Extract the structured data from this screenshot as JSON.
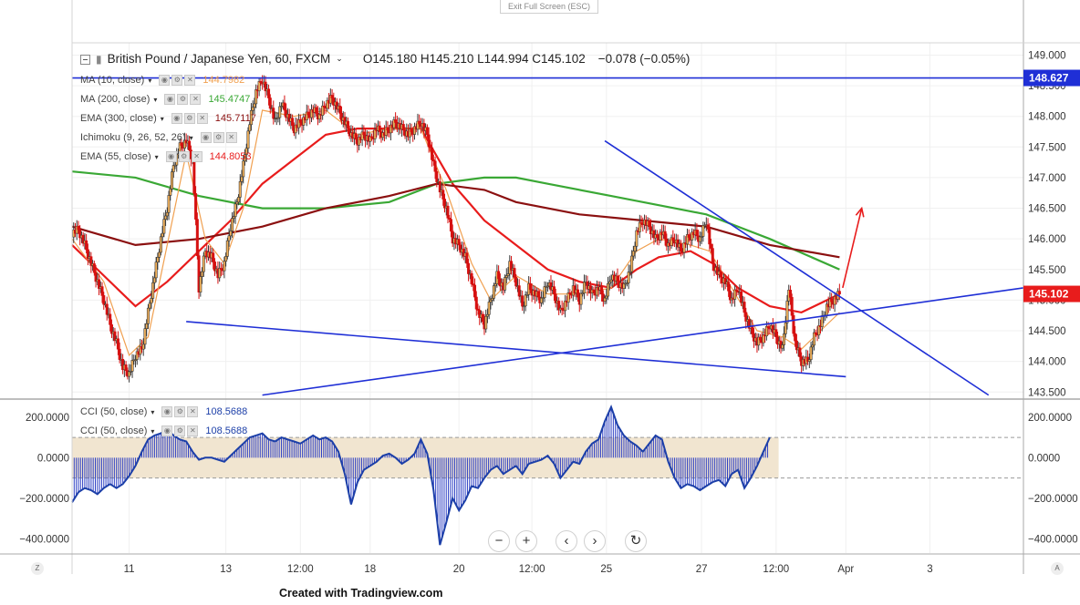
{
  "header": {
    "exit_fullscreen": "Exit Full Screen (ESC)",
    "symbol": "British Pound / Japanese Yen, 60, FXCM",
    "ohlc": "O145.180  H145.210  L144.994  C145.102",
    "change": "−0.078 (−0.05%)"
  },
  "indicators": [
    {
      "label": "MA (10, close)",
      "value": "144.7982",
      "color": "#f0a050"
    },
    {
      "label": "MA (200, close)",
      "value": "145.4747",
      "color": "#3aa835"
    },
    {
      "label": "EMA (300, close)",
      "value": "145.7117",
      "color": "#8b1010"
    },
    {
      "label": "Ichimoku (9, 26, 52, 26)",
      "value": "",
      "color": "#4a90d9"
    },
    {
      "label": "EMA (55, close)",
      "value": "144.8053",
      "color": "#e81c1c"
    }
  ],
  "cci_legend": [
    {
      "label": "CCI (50, close)",
      "value": "108.5688",
      "color": "#1c3fa8"
    },
    {
      "label": "CCI (50, close)",
      "value": "108.5688",
      "color": "#1c3fa8"
    }
  ],
  "price_badges": {
    "upper": "148.627",
    "current": "145.102"
  },
  "credit": "Created with Tradingview.com",
  "corner_labels": {
    "left": "Z",
    "right": "A"
  },
  "nav_buttons": [
    "−",
    "+",
    "‹",
    "›",
    "↻"
  ],
  "chart_data": {
    "type": "candlestick",
    "symbol": "GBPJPY",
    "timeframe": "60",
    "price_axis": {
      "range": [
        143.4,
        149.2
      ],
      "ticks": [
        "149.000",
        "148.500",
        "148.000",
        "147.500",
        "147.000",
        "146.500",
        "146.000",
        "145.500",
        "145.000",
        "144.500",
        "144.000",
        "143.500"
      ],
      "tick_values": [
        149.0,
        148.5,
        148.0,
        147.5,
        147.0,
        146.5,
        146.0,
        145.5,
        145.0,
        144.5,
        144.0,
        143.5
      ]
    },
    "cci_axis": {
      "range": [
        -470,
        280
      ],
      "ticks": [
        "200.0000",
        "0.0000",
        "−200.0000",
        "−400.0000"
      ],
      "tick_values": [
        200,
        0,
        -200,
        -400
      ],
      "band": [
        -100,
        100
      ]
    },
    "x_axis": {
      "range": [
        0,
        600
      ],
      "labels": [
        "11",
        "13",
        "12:00",
        "18",
        "20",
        "12:00",
        "25",
        "27",
        "12:00",
        "Apr",
        "3"
      ],
      "label_x": [
        36,
        97,
        144,
        188,
        244,
        290,
        337,
        397,
        444,
        488,
        541
      ]
    },
    "close_path": [
      [
        0,
        146.1
      ],
      [
        4,
        146.15
      ],
      [
        8,
        145.9
      ],
      [
        12,
        145.6
      ],
      [
        16,
        145.3
      ],
      [
        20,
        145.0
      ],
      [
        24,
        144.6
      ],
      [
        28,
        144.3
      ],
      [
        32,
        143.9
      ],
      [
        36,
        143.8
      ],
      [
        40,
        144.1
      ],
      [
        44,
        144.2
      ],
      [
        48,
        144.8
      ],
      [
        52,
        145.4
      ],
      [
        56,
        146.0
      ],
      [
        60,
        146.5
      ],
      [
        64,
        147.2
      ],
      [
        68,
        147.5
      ],
      [
        72,
        147.6
      ],
      [
        76,
        147.3
      ],
      [
        80,
        145.2
      ],
      [
        84,
        145.8
      ],
      [
        88,
        145.7
      ],
      [
        92,
        145.4
      ],
      [
        96,
        145.6
      ],
      [
        100,
        146.2
      ],
      [
        104,
        146.6
      ],
      [
        108,
        147.2
      ],
      [
        112,
        147.9
      ],
      [
        116,
        148.4
      ],
      [
        120,
        148.6
      ],
      [
        124,
        148.3
      ],
      [
        128,
        147.9
      ],
      [
        132,
        148.2
      ],
      [
        136,
        148.0
      ],
      [
        140,
        147.8
      ],
      [
        144,
        147.9
      ],
      [
        148,
        148.0
      ],
      [
        152,
        148.1
      ],
      [
        156,
        148.0
      ],
      [
        160,
        148.2
      ],
      [
        164,
        148.3
      ],
      [
        168,
        148.1
      ],
      [
        172,
        147.9
      ],
      [
        176,
        147.7
      ],
      [
        180,
        147.6
      ],
      [
        184,
        147.7
      ],
      [
        188,
        147.6
      ],
      [
        192,
        147.8
      ],
      [
        196,
        147.7
      ],
      [
        200,
        147.8
      ],
      [
        204,
        147.9
      ],
      [
        208,
        147.8
      ],
      [
        212,
        147.7
      ],
      [
        216,
        147.8
      ],
      [
        220,
        147.9
      ],
      [
        224,
        147.7
      ],
      [
        228,
        147.2
      ],
      [
        232,
        146.8
      ],
      [
        236,
        146.5
      ],
      [
        240,
        146.0
      ],
      [
        244,
        145.9
      ],
      [
        248,
        145.7
      ],
      [
        252,
        145.3
      ],
      [
        256,
        144.8
      ],
      [
        260,
        144.6
      ],
      [
        264,
        145.0
      ],
      [
        268,
        145.4
      ],
      [
        272,
        145.2
      ],
      [
        276,
        145.6
      ],
      [
        280,
        145.3
      ],
      [
        284,
        144.9
      ],
      [
        288,
        145.2
      ],
      [
        292,
        145.1
      ],
      [
        296,
        145.0
      ],
      [
        300,
        145.3
      ],
      [
        304,
        145.1
      ],
      [
        308,
        144.8
      ],
      [
        312,
        145.0
      ],
      [
        316,
        145.2
      ],
      [
        320,
        145.0
      ],
      [
        324,
        145.3
      ],
      [
        328,
        145.1
      ],
      [
        332,
        145.2
      ],
      [
        336,
        145.0
      ],
      [
        340,
        145.4
      ],
      [
        344,
        145.3
      ],
      [
        348,
        145.2
      ],
      [
        352,
        145.5
      ],
      [
        356,
        146.1
      ],
      [
        360,
        146.3
      ],
      [
        364,
        146.2
      ],
      [
        368,
        146.0
      ],
      [
        372,
        146.1
      ],
      [
        376,
        145.9
      ],
      [
        380,
        146.0
      ],
      [
        384,
        145.8
      ],
      [
        388,
        146.0
      ],
      [
        392,
        146.1
      ],
      [
        396,
        146.0
      ],
      [
        400,
        146.3
      ],
      [
        404,
        145.6
      ],
      [
        408,
        145.4
      ],
      [
        412,
        145.3
      ],
      [
        416,
        145.0
      ],
      [
        420,
        145.2
      ],
      [
        424,
        144.8
      ],
      [
        428,
        144.5
      ],
      [
        432,
        144.3
      ],
      [
        436,
        144.4
      ],
      [
        440,
        144.6
      ],
      [
        444,
        144.4
      ],
      [
        448,
        144.2
      ],
      [
        452,
        145.2
      ],
      [
        456,
        144.3
      ],
      [
        460,
        144.0
      ],
      [
        464,
        144.0
      ],
      [
        468,
        144.4
      ],
      [
        472,
        144.6
      ],
      [
        476,
        144.9
      ],
      [
        480,
        145.0
      ],
      [
        484,
        145.1
      ]
    ],
    "moving_averages": [
      {
        "name": "EMA (55, close)",
        "color": "#e81c1c",
        "points": [
          [
            0,
            145.9
          ],
          [
            20,
            145.4
          ],
          [
            40,
            144.9
          ],
          [
            60,
            145.3
          ],
          [
            80,
            145.8
          ],
          [
            100,
            146.3
          ],
          [
            120,
            146.9
          ],
          [
            140,
            147.3
          ],
          [
            160,
            147.7
          ],
          [
            180,
            147.8
          ],
          [
            200,
            147.8
          ],
          [
            220,
            147.8
          ],
          [
            240,
            146.9
          ],
          [
            260,
            146.3
          ],
          [
            280,
            145.9
          ],
          [
            300,
            145.5
          ],
          [
            320,
            145.3
          ],
          [
            340,
            145.2
          ],
          [
            356,
            145.5
          ],
          [
            370,
            145.7
          ],
          [
            390,
            145.8
          ],
          [
            404,
            145.6
          ],
          [
            420,
            145.2
          ],
          [
            440,
            144.9
          ],
          [
            460,
            144.8
          ],
          [
            484,
            145.1
          ]
        ]
      },
      {
        "name": "MA (200, close)",
        "color": "#3aa835",
        "points": [
          [
            0,
            147.1
          ],
          [
            40,
            147.0
          ],
          [
            80,
            146.7
          ],
          [
            120,
            146.5
          ],
          [
            160,
            146.5
          ],
          [
            200,
            146.6
          ],
          [
            230,
            146.9
          ],
          [
            260,
            147.0
          ],
          [
            280,
            147.0
          ],
          [
            300,
            146.9
          ],
          [
            340,
            146.7
          ],
          [
            380,
            146.5
          ],
          [
            400,
            146.4
          ],
          [
            440,
            146.0
          ],
          [
            484,
            145.5
          ]
        ]
      },
      {
        "name": "EMA (300, close)",
        "color": "#8b1010",
        "points": [
          [
            0,
            146.2
          ],
          [
            40,
            145.9
          ],
          [
            80,
            146.0
          ],
          [
            120,
            146.2
          ],
          [
            160,
            146.5
          ],
          [
            200,
            146.7
          ],
          [
            230,
            146.9
          ],
          [
            260,
            146.8
          ],
          [
            280,
            146.6
          ],
          [
            320,
            146.4
          ],
          [
            360,
            146.3
          ],
          [
            400,
            146.2
          ],
          [
            440,
            145.9
          ],
          [
            484,
            145.7
          ]
        ]
      },
      {
        "name": "MA (10, close)",
        "color": "#f0a050",
        "points": [
          [
            0,
            146.0
          ],
          [
            20,
            145.3
          ],
          [
            36,
            144.1
          ],
          [
            48,
            144.4
          ],
          [
            60,
            145.9
          ],
          [
            72,
            147.4
          ],
          [
            84,
            146.0
          ],
          [
            96,
            145.6
          ],
          [
            108,
            146.5
          ],
          [
            120,
            148.1
          ],
          [
            140,
            148.0
          ],
          [
            160,
            148.1
          ],
          [
            180,
            147.7
          ],
          [
            200,
            147.8
          ],
          [
            220,
            147.8
          ],
          [
            236,
            146.8
          ],
          [
            252,
            145.6
          ],
          [
            264,
            145.0
          ],
          [
            280,
            145.4
          ],
          [
            300,
            145.1
          ],
          [
            320,
            145.1
          ],
          [
            340,
            145.2
          ],
          [
            356,
            145.8
          ],
          [
            370,
            146.0
          ],
          [
            390,
            145.9
          ],
          [
            402,
            145.8
          ],
          [
            416,
            145.2
          ],
          [
            432,
            144.5
          ],
          [
            448,
            144.4
          ],
          [
            460,
            144.2
          ],
          [
            472,
            144.5
          ],
          [
            484,
            144.8
          ]
        ]
      }
    ],
    "trendlines": [
      {
        "points": [
          [
            72,
            144.65
          ],
          [
            488,
            143.75
          ]
        ],
        "color": "#1f2fd6"
      },
      {
        "points": [
          [
            120,
            143.45
          ],
          [
            600,
            145.2
          ]
        ],
        "color": "#1f2fd6"
      },
      {
        "points": [
          [
            336,
            147.6
          ],
          [
            578,
            143.45
          ]
        ],
        "color": "#1f2fd6"
      },
      {
        "points": [
          [
            0,
            148.627
          ],
          [
            600,
            148.627
          ]
        ],
        "color": "#1f2fd6"
      }
    ],
    "arrow": {
      "from": [
        486,
        145.2
      ],
      "to": [
        498,
        146.5
      ],
      "color": "#e81c1c"
    },
    "cci_series": [
      [
        0,
        -220
      ],
      [
        4,
        -170
      ],
      [
        8,
        -150
      ],
      [
        12,
        -160
      ],
      [
        16,
        -180
      ],
      [
        20,
        -150
      ],
      [
        24,
        -130
      ],
      [
        28,
        -150
      ],
      [
        32,
        -130
      ],
      [
        36,
        -90
      ],
      [
        40,
        -40
      ],
      [
        44,
        30
      ],
      [
        48,
        90
      ],
      [
        52,
        110
      ],
      [
        56,
        120
      ],
      [
        60,
        140
      ],
      [
        64,
        110
      ],
      [
        68,
        90
      ],
      [
        72,
        80
      ],
      [
        76,
        30
      ],
      [
        80,
        -10
      ],
      [
        84,
        0
      ],
      [
        88,
        0
      ],
      [
        92,
        -10
      ],
      [
        96,
        -20
      ],
      [
        100,
        10
      ],
      [
        104,
        40
      ],
      [
        108,
        70
      ],
      [
        112,
        100
      ],
      [
        116,
        110
      ],
      [
        120,
        120
      ],
      [
        124,
        90
      ],
      [
        128,
        80
      ],
      [
        132,
        100
      ],
      [
        136,
        90
      ],
      [
        140,
        80
      ],
      [
        144,
        70
      ],
      [
        148,
        90
      ],
      [
        152,
        110
      ],
      [
        156,
        90
      ],
      [
        160,
        100
      ],
      [
        164,
        80
      ],
      [
        168,
        30
      ],
      [
        172,
        -80
      ],
      [
        176,
        -230
      ],
      [
        180,
        -120
      ],
      [
        184,
        -60
      ],
      [
        188,
        -40
      ],
      [
        192,
        -20
      ],
      [
        196,
        10
      ],
      [
        200,
        20
      ],
      [
        204,
        0
      ],
      [
        208,
        -30
      ],
      [
        212,
        -10
      ],
      [
        216,
        20
      ],
      [
        220,
        90
      ],
      [
        224,
        20
      ],
      [
        228,
        -160
      ],
      [
        232,
        -430
      ],
      [
        236,
        -320
      ],
      [
        240,
        -200
      ],
      [
        244,
        -260
      ],
      [
        248,
        -210
      ],
      [
        252,
        -140
      ],
      [
        256,
        -150
      ],
      [
        260,
        -100
      ],
      [
        264,
        -60
      ],
      [
        268,
        -40
      ],
      [
        272,
        -80
      ],
      [
        276,
        -60
      ],
      [
        280,
        -40
      ],
      [
        284,
        -80
      ],
      [
        288,
        -30
      ],
      [
        292,
        -20
      ],
      [
        296,
        -10
      ],
      [
        300,
        10
      ],
      [
        304,
        -30
      ],
      [
        308,
        -100
      ],
      [
        312,
        -60
      ],
      [
        316,
        -20
      ],
      [
        320,
        -30
      ],
      [
        324,
        30
      ],
      [
        328,
        70
      ],
      [
        332,
        90
      ],
      [
        336,
        180
      ],
      [
        340,
        250
      ],
      [
        344,
        160
      ],
      [
        348,
        110
      ],
      [
        352,
        80
      ],
      [
        356,
        60
      ],
      [
        360,
        30
      ],
      [
        364,
        70
      ],
      [
        368,
        110
      ],
      [
        372,
        90
      ],
      [
        376,
        -20
      ],
      [
        380,
        -100
      ],
      [
        384,
        -150
      ],
      [
        388,
        -130
      ],
      [
        392,
        -140
      ],
      [
        396,
        -160
      ],
      [
        400,
        -140
      ],
      [
        404,
        -120
      ],
      [
        408,
        -110
      ],
      [
        412,
        -140
      ],
      [
        416,
        -80
      ],
      [
        420,
        -60
      ],
      [
        424,
        -150
      ],
      [
        428,
        -100
      ],
      [
        432,
        -40
      ],
      [
        436,
        30
      ],
      [
        440,
        100
      ]
    ]
  }
}
